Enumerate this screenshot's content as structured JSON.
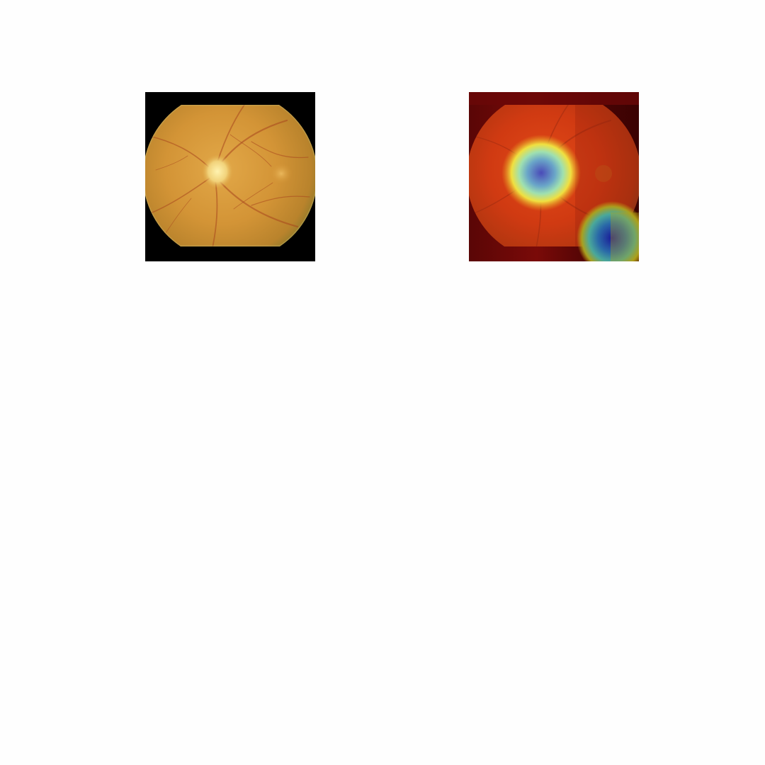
{
  "figure": {
    "panels": [
      {
        "id": "original",
        "content": "fundus-photograph"
      },
      {
        "id": "overlay",
        "content": "fundus-photograph-with-heatmap"
      }
    ],
    "colors": {
      "background": "#fefefe",
      "frame": "#000000",
      "retina_base": "#d49a3a",
      "retina_edge": "#9c6a22",
      "optic_disc": "#f3dc8a",
      "heatmap_high": "#3a3aa8",
      "heatmap_mid": "#7fd6c8",
      "heatmap_low": "#a0200e"
    }
  }
}
